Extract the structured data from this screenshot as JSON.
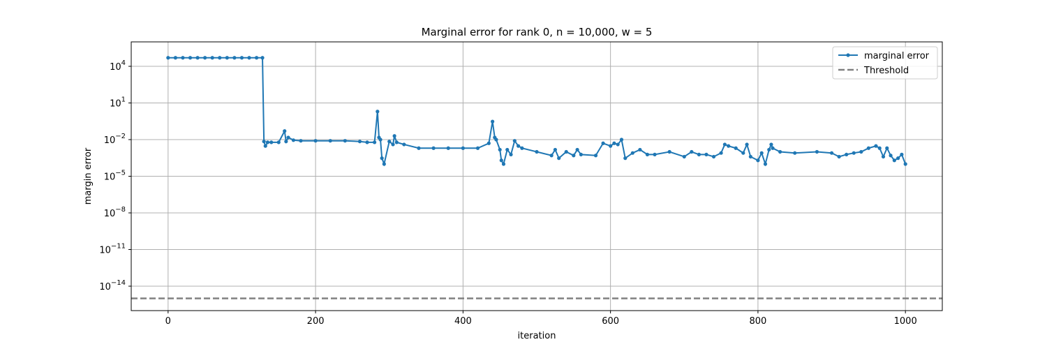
{
  "chart_data": {
    "type": "line",
    "title": "Marginal error for rank 0, n = 10,000, w = 5",
    "xlabel": "iteration",
    "ylabel": "margin error",
    "xlim": [
      -50,
      1050
    ],
    "ylim_log10": [
      -16,
      6
    ],
    "yscale": "log",
    "grid": true,
    "legend_position": "top-right",
    "x_ticks": [
      0,
      200,
      400,
      600,
      800,
      1000
    ],
    "y_ticks": [
      {
        "exp": 4,
        "label": "10^4"
      },
      {
        "exp": 1,
        "label": "10^1"
      },
      {
        "exp": -2,
        "label": "10^-2"
      },
      {
        "exp": -5,
        "label": "10^-5"
      },
      {
        "exp": -8,
        "label": "10^-8"
      },
      {
        "exp": -11,
        "label": "10^-11"
      },
      {
        "exp": -14,
        "label": "10^-14"
      }
    ],
    "series": [
      {
        "name": "marginal error",
        "color": "#1f77b4",
        "marker": "circle",
        "x": [
          0,
          10,
          20,
          30,
          40,
          50,
          60,
          70,
          80,
          90,
          100,
          110,
          120,
          128,
          130,
          132,
          135,
          140,
          150,
          158,
          160,
          163,
          170,
          180,
          200,
          220,
          240,
          260,
          270,
          280,
          284,
          286,
          288,
          290,
          293,
          300,
          305,
          307,
          310,
          320,
          340,
          360,
          380,
          400,
          420,
          435,
          440,
          443,
          445,
          450,
          452,
          455,
          460,
          465,
          470,
          475,
          480,
          500,
          520,
          525,
          530,
          540,
          550,
          555,
          560,
          580,
          590,
          600,
          605,
          610,
          615,
          620,
          630,
          640,
          650,
          660,
          680,
          700,
          710,
          720,
          730,
          740,
          750,
          755,
          760,
          770,
          780,
          785,
          790,
          800,
          805,
          810,
          815,
          818,
          820,
          830,
          850,
          880,
          900,
          910,
          920,
          930,
          940,
          950,
          960,
          965,
          970,
          975,
          980,
          985,
          990,
          995,
          1000
        ],
        "y": [
          50000,
          50000,
          50000,
          50000,
          50000,
          50000,
          50000,
          50000,
          50000,
          50000,
          50000,
          50000,
          50000,
          50000,
          0.007,
          0.003,
          0.006,
          0.006,
          0.006,
          0.05,
          0.007,
          0.015,
          0.009,
          0.008,
          0.008,
          0.008,
          0.008,
          0.007,
          0.006,
          0.006,
          2.0,
          0.015,
          0.01,
          0.0003,
          0.0001,
          0.007,
          0.004,
          0.02,
          0.006,
          0.004,
          0.002,
          0.002,
          0.002,
          0.002,
          0.002,
          0.005,
          0.3,
          0.015,
          0.01,
          0.0015,
          0.0002,
          0.0001,
          0.0015,
          0.0006,
          0.008,
          0.003,
          0.002,
          0.001,
          0.0005,
          0.0015,
          0.0003,
          0.001,
          0.0005,
          0.0015,
          0.0006,
          0.0005,
          0.005,
          0.003,
          0.005,
          0.004,
          0.01,
          0.0003,
          0.0008,
          0.0015,
          0.0006,
          0.0006,
          0.001,
          0.0004,
          0.001,
          0.0006,
          0.0006,
          0.0004,
          0.0008,
          0.004,
          0.003,
          0.002,
          0.0008,
          0.004,
          0.0004,
          0.0002,
          0.0008,
          0.0001,
          0.0015,
          0.004,
          0.002,
          0.001,
          0.0008,
          0.001,
          0.0008,
          0.0004,
          0.0006,
          0.0008,
          0.001,
          0.002,
          0.003,
          0.002,
          0.0004,
          0.002,
          0.0005,
          0.0002,
          0.0003,
          0.0006,
          0.0001
        ]
      },
      {
        "name": "Threshold",
        "color": "#808080",
        "style": "dashed",
        "y_constant": 1e-15
      }
    ]
  }
}
